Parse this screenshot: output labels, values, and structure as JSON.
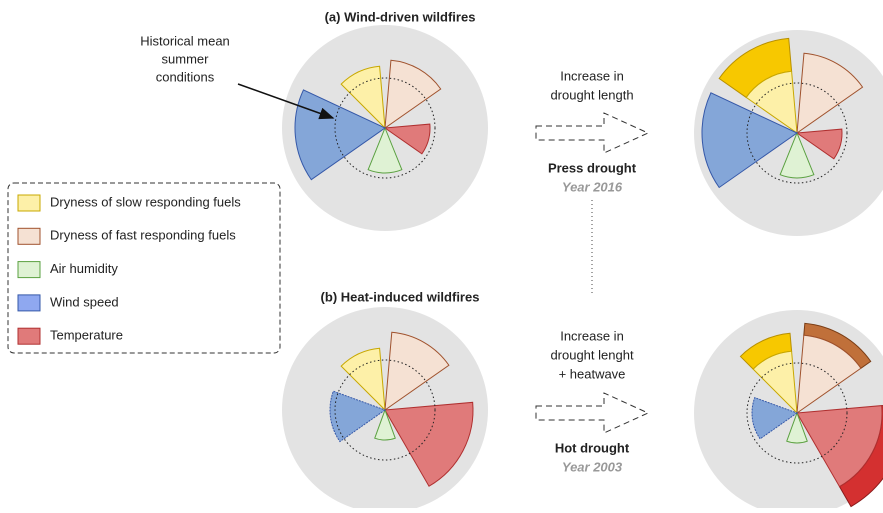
{
  "annotation": {
    "lines": [
      "Historical mean",
      "summer",
      "conditions"
    ]
  },
  "legend": {
    "items": [
      "Dryness of slow responding fuels",
      "Dryness of fast responding fuels",
      "Air humidity",
      "Wind speed",
      "Temperature"
    ]
  },
  "panels": [
    {
      "title": "(a) Wind-driven wildfires",
      "arrow_label": [
        "Increase in",
        "drought length"
      ],
      "drought": "Press drought",
      "year": "Year 2016"
    },
    {
      "title": "(b) Heat-induced wildfires",
      "arrow_label": [
        "Increase in",
        "drought lenght",
        "+ heatwave"
      ],
      "drought": "Hot drought",
      "year": "Year 2003"
    }
  ]
}
